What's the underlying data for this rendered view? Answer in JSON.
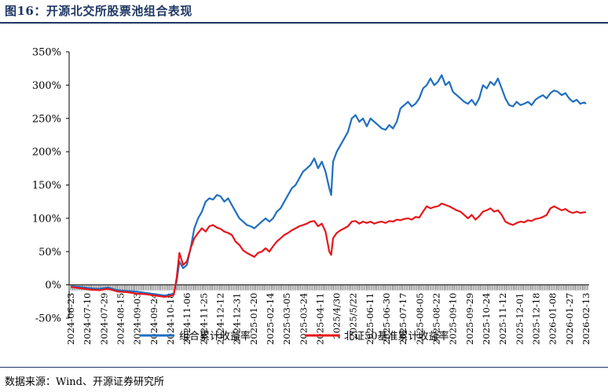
{
  "header": {
    "title": "图16：开源北交所股票池组合表现"
  },
  "footer": {
    "source": "数据来源：Wind、开源证券研究所"
  },
  "chart_data": {
    "type": "line",
    "y_ticks": [
      "350%",
      "300%",
      "250%",
      "200%",
      "150%",
      "100%",
      "50%",
      "0%",
      "-50%"
    ],
    "ylim": [
      -50,
      350
    ],
    "x_ticks": [
      "2024-06-23",
      "2024-07-10",
      "2024-07-29",
      "2024-08-15",
      "2024-09-03",
      "2024-09-24",
      "2024-10-18",
      "2024-11-06",
      "2024-11-25",
      "2024-12-12",
      "2024-12-31",
      "2025-01-20",
      "2025-02-14",
      "2025-03-05",
      "2025-03-24",
      "2025-04-11",
      "2025/4/30",
      "2025/5/22",
      "2025-06-11",
      "2025-06-30",
      "2025-07-17",
      "2025-08-05",
      "2025-08-22",
      "2025-09-10",
      "2025-09-29",
      "2025-10-24",
      "2025-11-12",
      "2025-12-01",
      "2025-12-18",
      "2026-01-08",
      "2026-01-27",
      "2026-02-13"
    ],
    "series": [
      {
        "name": "组合累计收益率",
        "color": "#1f6fbf",
        "values": [
          [
            0,
            -2
          ],
          [
            1,
            -3
          ],
          [
            2,
            -5
          ],
          [
            3,
            -6
          ],
          [
            4,
            -4
          ],
          [
            5,
            -8
          ],
          [
            6,
            -9
          ],
          [
            7,
            -10
          ],
          [
            8,
            -12
          ],
          [
            9,
            -14
          ],
          [
            10,
            -16
          ],
          [
            10.5,
            -15
          ],
          [
            11,
            -13
          ],
          [
            11.3,
            5
          ],
          [
            11.6,
            35
          ],
          [
            12,
            25
          ],
          [
            12.4,
            30
          ],
          [
            12.8,
            55
          ],
          [
            13.2,
            85
          ],
          [
            13.6,
            100
          ],
          [
            14,
            110
          ],
          [
            14.4,
            125
          ],
          [
            14.8,
            130
          ],
          [
            15.2,
            128
          ],
          [
            15.6,
            135
          ],
          [
            16,
            133
          ],
          [
            16.4,
            125
          ],
          [
            16.8,
            130
          ],
          [
            17.2,
            120
          ],
          [
            17.6,
            110
          ],
          [
            18,
            100
          ],
          [
            18.4,
            95
          ],
          [
            18.8,
            90
          ],
          [
            19.2,
            88
          ],
          [
            19.6,
            85
          ],
          [
            20,
            90
          ],
          [
            20.4,
            95
          ],
          [
            20.8,
            100
          ],
          [
            21.2,
            95
          ],
          [
            21.6,
            100
          ],
          [
            22,
            110
          ],
          [
            22.4,
            115
          ],
          [
            22.8,
            125
          ],
          [
            23.2,
            135
          ],
          [
            23.6,
            145
          ],
          [
            24,
            150
          ],
          [
            24.4,
            160
          ],
          [
            24.8,
            170
          ],
          [
            25.2,
            175
          ],
          [
            25.6,
            180
          ],
          [
            26,
            190
          ],
          [
            26.4,
            175
          ],
          [
            26.8,
            185
          ],
          [
            27.2,
            170
          ],
          [
            27.6,
            145
          ],
          [
            27.8,
            135
          ],
          [
            28,
            185
          ],
          [
            28.4,
            200
          ],
          [
            28.8,
            210
          ],
          [
            29.2,
            220
          ],
          [
            29.6,
            230
          ],
          [
            30,
            250
          ],
          [
            30.4,
            255
          ],
          [
            30.8,
            245
          ],
          [
            31.2,
            250
          ],
          [
            31.6,
            238
          ],
          [
            32,
            250
          ],
          [
            32.4,
            245
          ],
          [
            32.8,
            240
          ],
          [
            33.2,
            235
          ],
          [
            33.6,
            233
          ],
          [
            34,
            240
          ],
          [
            34.4,
            235
          ],
          [
            34.8,
            245
          ],
          [
            35.2,
            265
          ],
          [
            35.6,
            270
          ],
          [
            36,
            275
          ],
          [
            36.4,
            268
          ],
          [
            36.8,
            272
          ],
          [
            37.2,
            280
          ],
          [
            37.6,
            295
          ],
          [
            38,
            300
          ],
          [
            38.4,
            310
          ],
          [
            38.8,
            300
          ],
          [
            39.2,
            305
          ],
          [
            39.6,
            315
          ],
          [
            40,
            300
          ],
          [
            40.4,
            305
          ],
          [
            40.8,
            290
          ],
          [
            41.2,
            285
          ],
          [
            41.6,
            280
          ],
          [
            42,
            275
          ],
          [
            42.4,
            272
          ],
          [
            42.8,
            278
          ],
          [
            43.2,
            270
          ],
          [
            43.6,
            280
          ],
          [
            44,
            300
          ],
          [
            44.4,
            295
          ],
          [
            44.8,
            305
          ],
          [
            45.2,
            300
          ],
          [
            45.6,
            310
          ],
          [
            46,
            295
          ],
          [
            46.4,
            280
          ],
          [
            46.8,
            270
          ],
          [
            47.2,
            268
          ],
          [
            47.6,
            275
          ],
          [
            48,
            270
          ],
          [
            48.4,
            272
          ],
          [
            48.8,
            275
          ],
          [
            49.2,
            270
          ],
          [
            49.6,
            278
          ],
          [
            50,
            282
          ],
          [
            50.4,
            285
          ],
          [
            50.8,
            280
          ],
          [
            51.2,
            288
          ],
          [
            51.6,
            292
          ],
          [
            52,
            290
          ],
          [
            52.4,
            285
          ],
          [
            52.8,
            288
          ],
          [
            53.2,
            280
          ],
          [
            53.6,
            275
          ],
          [
            54,
            278
          ],
          [
            54.4,
            272
          ],
          [
            54.8,
            274
          ],
          [
            55,
            272
          ]
        ]
      },
      {
        "name": "北证50基准累计收益率",
        "color": "#e8161b",
        "values": [
          [
            0,
            -3
          ],
          [
            1,
            -5
          ],
          [
            2,
            -7
          ],
          [
            3,
            -8
          ],
          [
            4,
            -6
          ],
          [
            5,
            -10
          ],
          [
            6,
            -11
          ],
          [
            7,
            -13
          ],
          [
            8,
            -14
          ],
          [
            9,
            -16
          ],
          [
            10,
            -18
          ],
          [
            10.5,
            -17
          ],
          [
            11,
            -15
          ],
          [
            11.3,
            10
          ],
          [
            11.6,
            48
          ],
          [
            12,
            30
          ],
          [
            12.4,
            35
          ],
          [
            12.8,
            55
          ],
          [
            13.2,
            70
          ],
          [
            13.6,
            78
          ],
          [
            14,
            85
          ],
          [
            14.4,
            80
          ],
          [
            14.8,
            88
          ],
          [
            15.2,
            90
          ],
          [
            15.6,
            86
          ],
          [
            16,
            84
          ],
          [
            16.4,
            80
          ],
          [
            16.8,
            78
          ],
          [
            17.2,
            75
          ],
          [
            17.6,
            65
          ],
          [
            18,
            60
          ],
          [
            18.4,
            52
          ],
          [
            18.8,
            48
          ],
          [
            19.2,
            45
          ],
          [
            19.6,
            42
          ],
          [
            20,
            48
          ],
          [
            20.4,
            50
          ],
          [
            20.8,
            55
          ],
          [
            21.2,
            50
          ],
          [
            21.6,
            58
          ],
          [
            22,
            65
          ],
          [
            22.4,
            70
          ],
          [
            22.8,
            75
          ],
          [
            23.2,
            78
          ],
          [
            23.6,
            82
          ],
          [
            24,
            85
          ],
          [
            24.4,
            88
          ],
          [
            24.8,
            90
          ],
          [
            25.2,
            92
          ],
          [
            25.6,
            95
          ],
          [
            26,
            96
          ],
          [
            26.4,
            88
          ],
          [
            26.8,
            92
          ],
          [
            27.2,
            80
          ],
          [
            27.6,
            50
          ],
          [
            27.8,
            45
          ],
          [
            28,
            70
          ],
          [
            28.4,
            78
          ],
          [
            28.8,
            82
          ],
          [
            29.2,
            85
          ],
          [
            29.6,
            88
          ],
          [
            30,
            95
          ],
          [
            30.4,
            96
          ],
          [
            30.8,
            92
          ],
          [
            31.2,
            95
          ],
          [
            31.6,
            93
          ],
          [
            32,
            95
          ],
          [
            32.4,
            92
          ],
          [
            32.8,
            94
          ],
          [
            33.2,
            95
          ],
          [
            33.6,
            93
          ],
          [
            34,
            96
          ],
          [
            34.4,
            95
          ],
          [
            34.8,
            98
          ],
          [
            35.2,
            97
          ],
          [
            35.6,
            99
          ],
          [
            36,
            100
          ],
          [
            36.4,
            98
          ],
          [
            36.8,
            102
          ],
          [
            37.2,
            101
          ],
          [
            37.6,
            110
          ],
          [
            38,
            118
          ],
          [
            38.4,
            115
          ],
          [
            38.8,
            117
          ],
          [
            39.2,
            118
          ],
          [
            39.6,
            122
          ],
          [
            40,
            120
          ],
          [
            40.4,
            118
          ],
          [
            40.8,
            115
          ],
          [
            41.2,
            112
          ],
          [
            41.6,
            110
          ],
          [
            42,
            105
          ],
          [
            42.4,
            100
          ],
          [
            42.8,
            105
          ],
          [
            43.2,
            98
          ],
          [
            43.6,
            103
          ],
          [
            44,
            110
          ],
          [
            44.4,
            112
          ],
          [
            44.8,
            115
          ],
          [
            45.2,
            110
          ],
          [
            45.6,
            112
          ],
          [
            46,
            105
          ],
          [
            46.4,
            95
          ],
          [
            46.8,
            92
          ],
          [
            47.2,
            90
          ],
          [
            47.6,
            93
          ],
          [
            48,
            95
          ],
          [
            48.4,
            94
          ],
          [
            48.8,
            97
          ],
          [
            49.2,
            96
          ],
          [
            49.6,
            99
          ],
          [
            50,
            100
          ],
          [
            50.4,
            102
          ],
          [
            50.8,
            105
          ],
          [
            51.2,
            115
          ],
          [
            51.6,
            118
          ],
          [
            52,
            115
          ],
          [
            52.4,
            112
          ],
          [
            52.8,
            114
          ],
          [
            53.2,
            110
          ],
          [
            53.6,
            108
          ],
          [
            54,
            110
          ],
          [
            54.4,
            108
          ],
          [
            54.8,
            109
          ],
          [
            55,
            109
          ]
        ]
      }
    ]
  }
}
